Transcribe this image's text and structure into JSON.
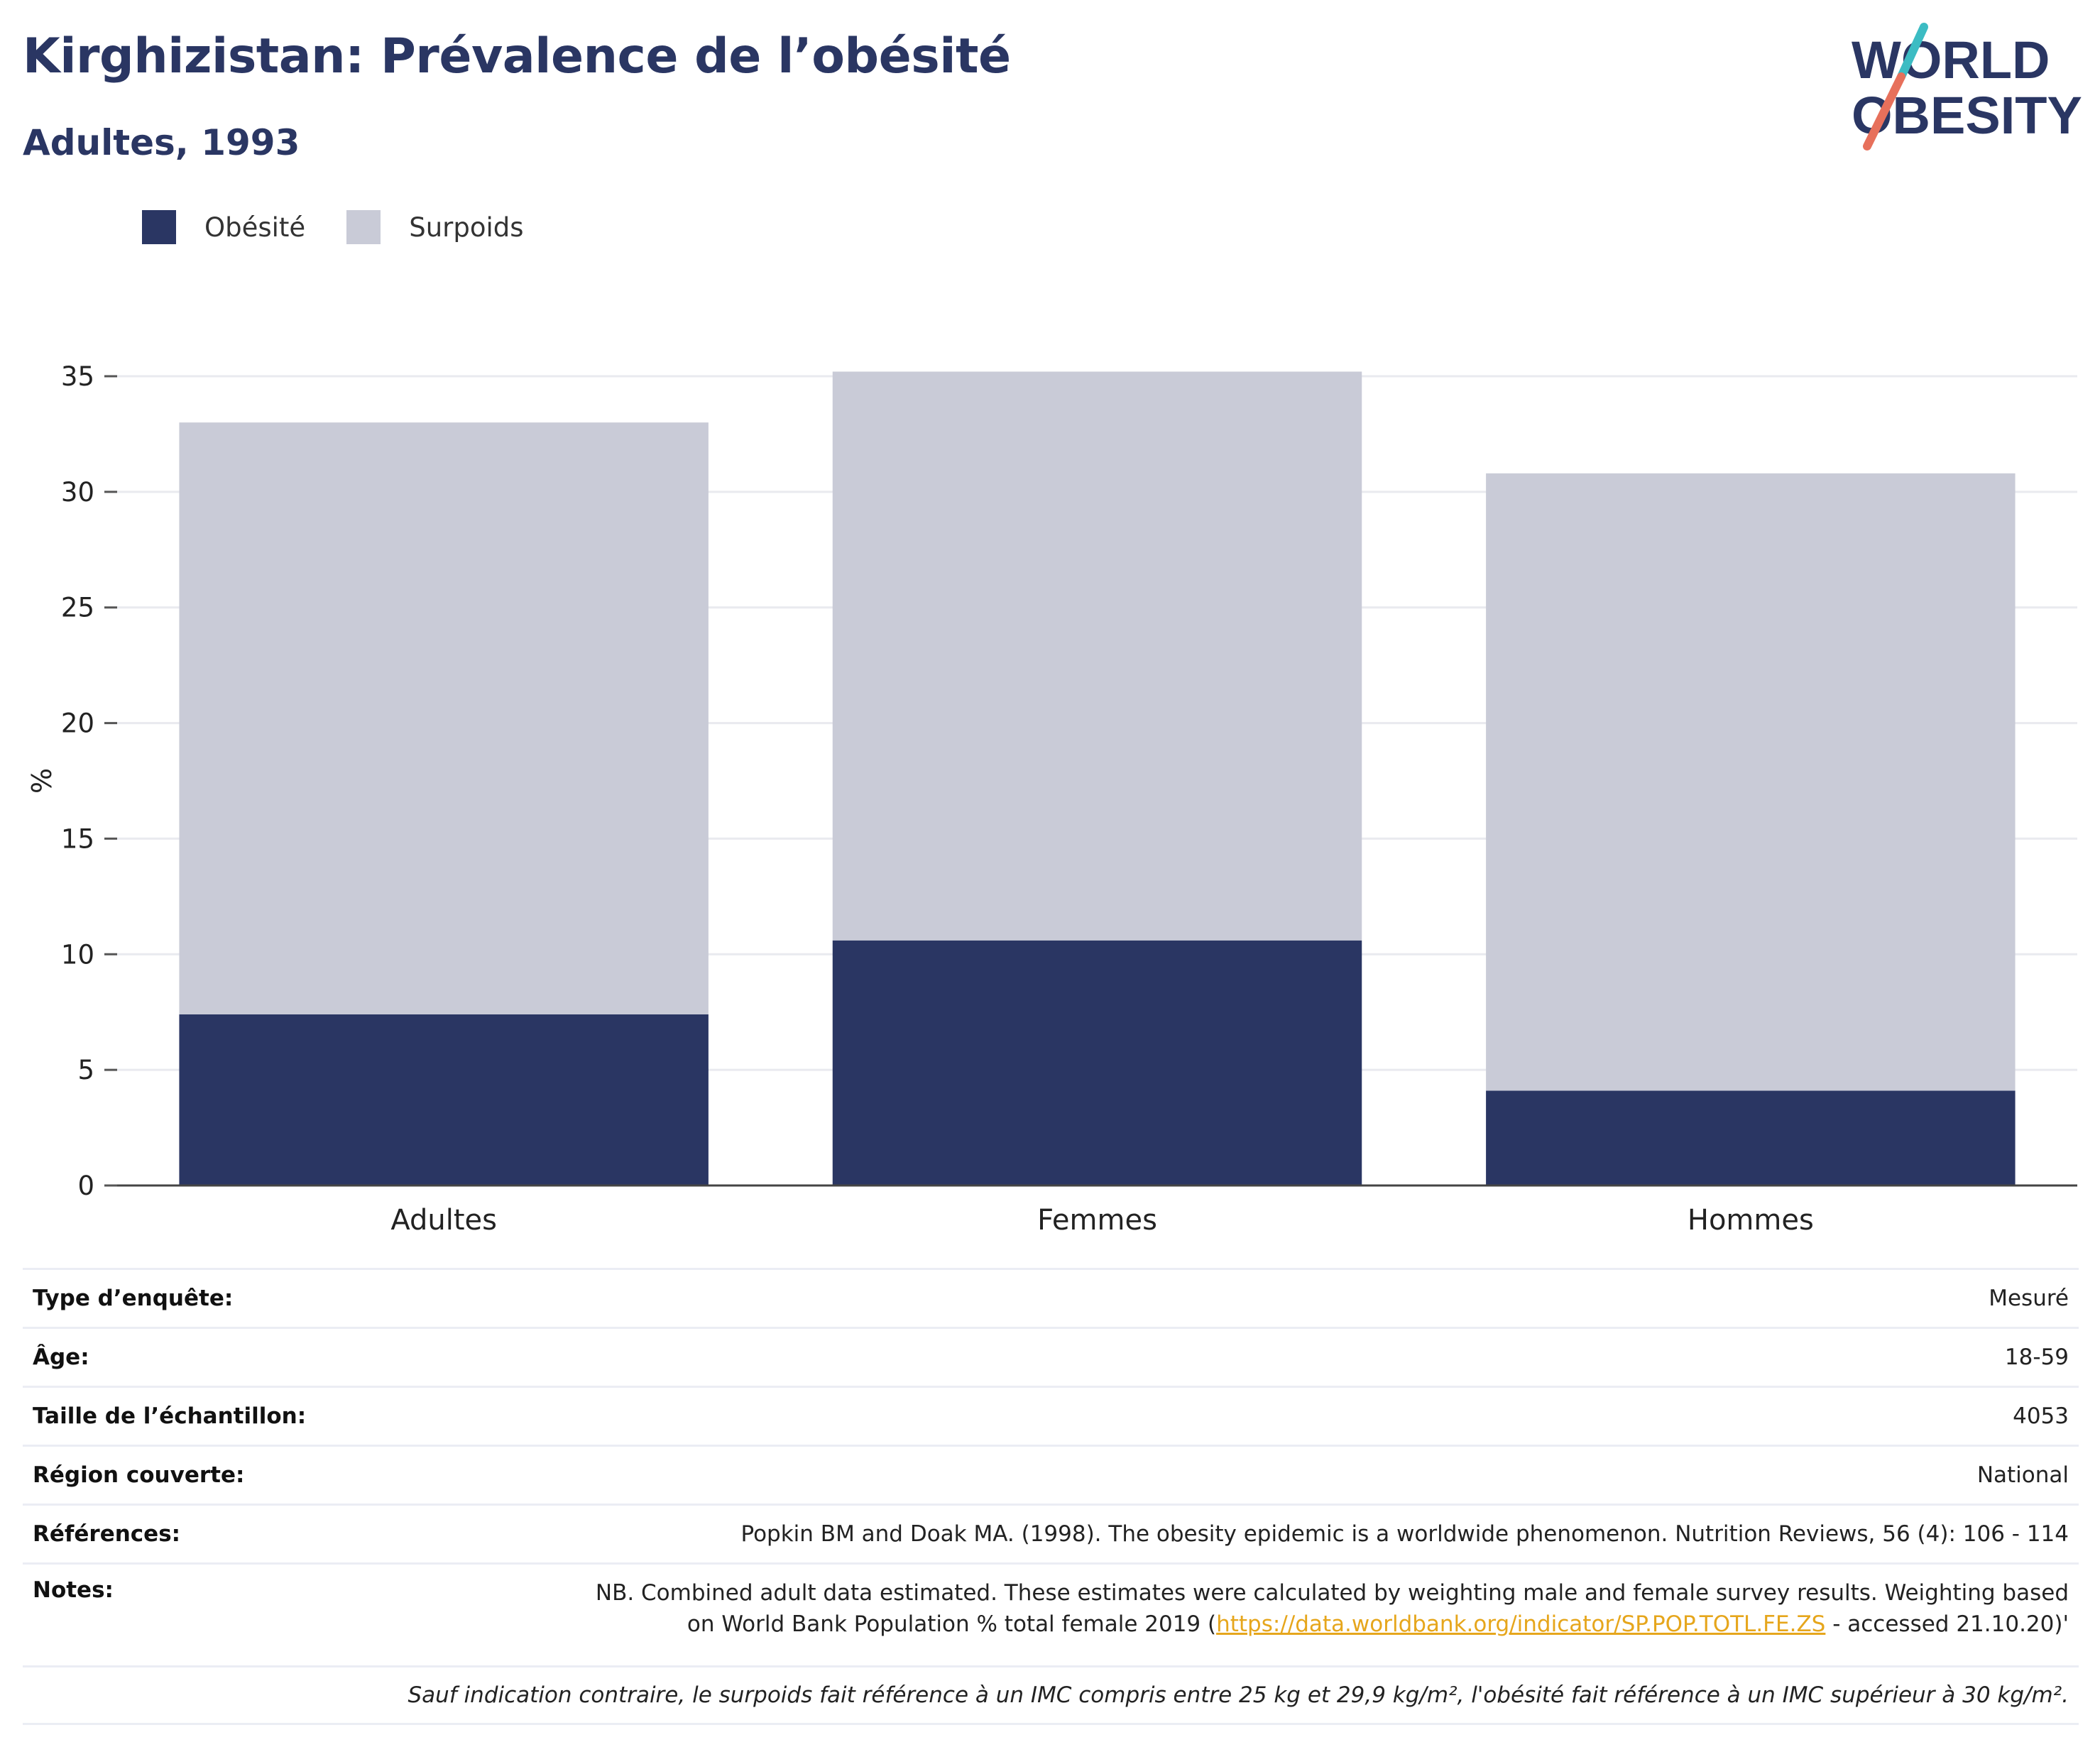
{
  "header": {
    "title": "Kirghizistan: Prévalence de l’obésité",
    "subtitle": "Adultes, 1993"
  },
  "logo": {
    "line1": "WORLD",
    "line2": "OBESITY",
    "slash_colors": [
      "#3cbcc3",
      "#e7705b"
    ]
  },
  "colors": {
    "obesity": "#2a3663",
    "overweight": "#c9cbd7",
    "title": "#2a3663",
    "link": "#e6a61c"
  },
  "chart_data": {
    "type": "bar",
    "stacked": true,
    "categories": [
      "Adultes",
      "Femmes",
      "Hommes"
    ],
    "series": [
      {
        "name": "Obésité",
        "values": [
          7.4,
          10.6,
          4.1
        ]
      },
      {
        "name": "Surpoids",
        "values": [
          25.6,
          24.6,
          26.7
        ]
      }
    ],
    "title": "Kirghizistan: Prévalence de l’obésité",
    "subtitle": "Adultes, 1993",
    "ylabel": "%",
    "ylim": [
      0,
      35
    ],
    "yticks": [
      0,
      5,
      10,
      15,
      20,
      25,
      30,
      35
    ],
    "legend": "top-left",
    "grid": true
  },
  "meta": {
    "rows": [
      {
        "key": "Type d’enquête:",
        "value": "Mesuré"
      },
      {
        "key": "Âge:",
        "value": "18-59"
      },
      {
        "key": "Taille de l’échantillon:",
        "value": "4053"
      },
      {
        "key": "Région couverte:",
        "value": "National"
      },
      {
        "key": "Références:",
        "value": "Popkin BM and Doak MA. (1998). The obesity epidemic is a worldwide phenomenon. Nutrition Reviews, 56 (4): 106 - 114"
      }
    ],
    "notes": {
      "key": "Notes:",
      "line1": "NB. Combined adult data estimated. These estimates were calculated by weighting male and female survey results. Weighting based",
      "line2_prefix": "on World Bank Population % total female 2019 (",
      "link": "https://data.worldbank.org/indicator/SP.POP.TOTL.FE.ZS",
      "line2_suffix": " - accessed 21.10.20)'"
    },
    "footnote": "Sauf indication contraire, le surpoids fait référence à un IMC compris entre 25 kg et 29,9 kg/m², l'obésité fait référence à un IMC supérieur à 30 kg/m²."
  }
}
